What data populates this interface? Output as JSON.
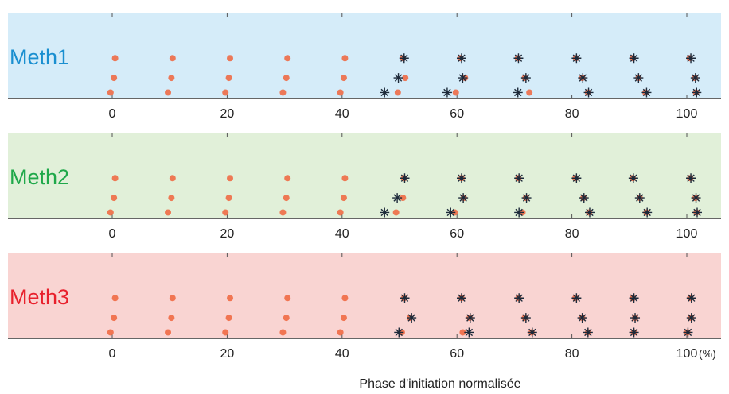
{
  "chart_data": {
    "type": "scatter",
    "xlabel": "Phase d'initiation normalisée",
    "x_unit": "(%)",
    "xlim": [
      -2,
      103
    ],
    "xticks": [
      0,
      20,
      40,
      60,
      80,
      100
    ],
    "grid": false,
    "panels": [
      {
        "label": "Meth1",
        "label_color": "#1a8fd0",
        "background": "#d5ecf9",
        "series": [
          {
            "marker": "dot",
            "color": "#f0643c",
            "points": [
              {
                "x": 0.5,
                "y": 3
              },
              {
                "x": 0.3,
                "y": 2
              },
              {
                "x": -0.3,
                "y": 1
              },
              {
                "x": 10.5,
                "y": 3
              },
              {
                "x": 10.3,
                "y": 2
              },
              {
                "x": 9.7,
                "y": 1
              },
              {
                "x": 20.5,
                "y": 3
              },
              {
                "x": 20.3,
                "y": 2
              },
              {
                "x": 19.7,
                "y": 1
              },
              {
                "x": 30.5,
                "y": 3
              },
              {
                "x": 30.3,
                "y": 2
              },
              {
                "x": 29.7,
                "y": 1
              },
              {
                "x": 40.5,
                "y": 3
              },
              {
                "x": 40.3,
                "y": 2
              },
              {
                "x": 39.7,
                "y": 1
              },
              {
                "x": 50.6,
                "y": 3
              },
              {
                "x": 51.0,
                "y": 2
              },
              {
                "x": 49.7,
                "y": 1
              },
              {
                "x": 60.6,
                "y": 3
              },
              {
                "x": 61.4,
                "y": 2
              },
              {
                "x": 59.8,
                "y": 1
              },
              {
                "x": 70.6,
                "y": 3
              },
              {
                "x": 71.8,
                "y": 2
              },
              {
                "x": 72.6,
                "y": 1
              },
              {
                "x": 80.7,
                "y": 3
              },
              {
                "x": 81.8,
                "y": 2
              },
              {
                "x": 82.8,
                "y": 1
              },
              {
                "x": 90.6,
                "y": 3
              },
              {
                "x": 91.6,
                "y": 2
              },
              {
                "x": 92.8,
                "y": 1
              },
              {
                "x": 100.5,
                "y": 3
              },
              {
                "x": 101.4,
                "y": 2
              },
              {
                "x": 101.6,
                "y": 1
              }
            ]
          },
          {
            "marker": "star",
            "color": "#1d2a3a",
            "points": [
              {
                "x": 50.8,
                "y": 3
              },
              {
                "x": 49.8,
                "y": 2
              },
              {
                "x": 47.4,
                "y": 1
              },
              {
                "x": 60.8,
                "y": 3
              },
              {
                "x": 61.0,
                "y": 2
              },
              {
                "x": 58.3,
                "y": 1
              },
              {
                "x": 70.7,
                "y": 3
              },
              {
                "x": 72.0,
                "y": 2
              },
              {
                "x": 70.6,
                "y": 1
              },
              {
                "x": 80.8,
                "y": 3
              },
              {
                "x": 81.9,
                "y": 2
              },
              {
                "x": 82.9,
                "y": 1
              },
              {
                "x": 90.8,
                "y": 3
              },
              {
                "x": 91.6,
                "y": 2
              },
              {
                "x": 93.0,
                "y": 1
              },
              {
                "x": 100.7,
                "y": 3
              },
              {
                "x": 101.5,
                "y": 2
              },
              {
                "x": 101.7,
                "y": 1
              }
            ]
          }
        ]
      },
      {
        "label": "Meth2",
        "label_color": "#1fa84a",
        "background": "#e1f0d9",
        "series": [
          {
            "marker": "dot",
            "color": "#f0643c",
            "points": [
              {
                "x": 0.5,
                "y": 3
              },
              {
                "x": 0.3,
                "y": 2
              },
              {
                "x": -0.3,
                "y": 1
              },
              {
                "x": 10.5,
                "y": 3
              },
              {
                "x": 10.3,
                "y": 2
              },
              {
                "x": 9.7,
                "y": 1
              },
              {
                "x": 20.5,
                "y": 3
              },
              {
                "x": 20.3,
                "y": 2
              },
              {
                "x": 19.7,
                "y": 1
              },
              {
                "x": 30.5,
                "y": 3
              },
              {
                "x": 30.3,
                "y": 2
              },
              {
                "x": 29.7,
                "y": 1
              },
              {
                "x": 40.5,
                "y": 3
              },
              {
                "x": 40.3,
                "y": 2
              },
              {
                "x": 39.7,
                "y": 1
              },
              {
                "x": 50.8,
                "y": 3
              },
              {
                "x": 50.6,
                "y": 2
              },
              {
                "x": 49.4,
                "y": 1
              },
              {
                "x": 60.8,
                "y": 3
              },
              {
                "x": 61.2,
                "y": 2
              },
              {
                "x": 59.6,
                "y": 1
              },
              {
                "x": 70.7,
                "y": 3
              },
              {
                "x": 72.0,
                "y": 2
              },
              {
                "x": 71.4,
                "y": 1
              },
              {
                "x": 80.6,
                "y": 3
              },
              {
                "x": 82.0,
                "y": 2
              },
              {
                "x": 83.0,
                "y": 1
              },
              {
                "x": 90.6,
                "y": 3
              },
              {
                "x": 91.8,
                "y": 2
              },
              {
                "x": 93.0,
                "y": 1
              },
              {
                "x": 100.6,
                "y": 3
              },
              {
                "x": 101.5,
                "y": 2
              },
              {
                "x": 101.7,
                "y": 1
              }
            ]
          },
          {
            "marker": "star",
            "color": "#1d2a3a",
            "points": [
              {
                "x": 50.9,
                "y": 3
              },
              {
                "x": 49.6,
                "y": 2
              },
              {
                "x": 47.4,
                "y": 1
              },
              {
                "x": 60.8,
                "y": 3
              },
              {
                "x": 61.1,
                "y": 2
              },
              {
                "x": 58.9,
                "y": 1
              },
              {
                "x": 70.8,
                "y": 3
              },
              {
                "x": 72.1,
                "y": 2
              },
              {
                "x": 70.8,
                "y": 1
              },
              {
                "x": 80.8,
                "y": 3
              },
              {
                "x": 82.1,
                "y": 2
              },
              {
                "x": 83.1,
                "y": 1
              },
              {
                "x": 90.7,
                "y": 3
              },
              {
                "x": 91.8,
                "y": 2
              },
              {
                "x": 93.1,
                "y": 1
              },
              {
                "x": 100.7,
                "y": 3
              },
              {
                "x": 101.6,
                "y": 2
              },
              {
                "x": 101.8,
                "y": 1
              }
            ]
          }
        ]
      },
      {
        "label": "Meth3",
        "label_color": "#e8202c",
        "background": "#f9d4d2",
        "series": [
          {
            "marker": "dot",
            "color": "#f0643c",
            "points": [
              {
                "x": 0.5,
                "y": 3
              },
              {
                "x": 0.3,
                "y": 2
              },
              {
                "x": -0.3,
                "y": 1
              },
              {
                "x": 10.5,
                "y": 3
              },
              {
                "x": 10.3,
                "y": 2
              },
              {
                "x": 9.7,
                "y": 1
              },
              {
                "x": 20.5,
                "y": 3
              },
              {
                "x": 20.3,
                "y": 2
              },
              {
                "x": 19.7,
                "y": 1
              },
              {
                "x": 30.5,
                "y": 3
              },
              {
                "x": 30.3,
                "y": 2
              },
              {
                "x": 29.7,
                "y": 1
              },
              {
                "x": 40.5,
                "y": 3
              },
              {
                "x": 40.3,
                "y": 2
              },
              {
                "x": 39.7,
                "y": 1
              },
              {
                "x": 50.8,
                "y": 3
              },
              {
                "x": 51.8,
                "y": 2
              },
              {
                "x": 50.4,
                "y": 1
              },
              {
                "x": 60.8,
                "y": 3
              },
              {
                "x": 62.2,
                "y": 2
              },
              {
                "x": 61.0,
                "y": 1
              },
              {
                "x": 70.7,
                "y": 3
              },
              {
                "x": 71.8,
                "y": 2
              },
              {
                "x": 73.0,
                "y": 1
              },
              {
                "x": 80.6,
                "y": 3
              },
              {
                "x": 81.8,
                "y": 2
              },
              {
                "x": 82.8,
                "y": 1
              },
              {
                "x": 90.6,
                "y": 3
              },
              {
                "x": 91.0,
                "y": 2
              },
              {
                "x": 90.8,
                "y": 1
              },
              {
                "x": 100.6,
                "y": 3
              },
              {
                "x": 100.7,
                "y": 2
              },
              {
                "x": 100.1,
                "y": 1
              }
            ]
          },
          {
            "marker": "star",
            "color": "#1d2a3a",
            "points": [
              {
                "x": 50.9,
                "y": 3
              },
              {
                "x": 52.1,
                "y": 2
              },
              {
                "x": 49.9,
                "y": 1
              },
              {
                "x": 60.8,
                "y": 3
              },
              {
                "x": 62.3,
                "y": 2
              },
              {
                "x": 62.1,
                "y": 1
              },
              {
                "x": 70.8,
                "y": 3
              },
              {
                "x": 72.0,
                "y": 2
              },
              {
                "x": 73.1,
                "y": 1
              },
              {
                "x": 80.8,
                "y": 3
              },
              {
                "x": 81.8,
                "y": 2
              },
              {
                "x": 82.8,
                "y": 1
              },
              {
                "x": 90.8,
                "y": 3
              },
              {
                "x": 91.0,
                "y": 2
              },
              {
                "x": 90.8,
                "y": 1
              },
              {
                "x": 100.8,
                "y": 3
              },
              {
                "x": 100.8,
                "y": 2
              },
              {
                "x": 100.2,
                "y": 1
              }
            ]
          }
        ]
      }
    ]
  }
}
